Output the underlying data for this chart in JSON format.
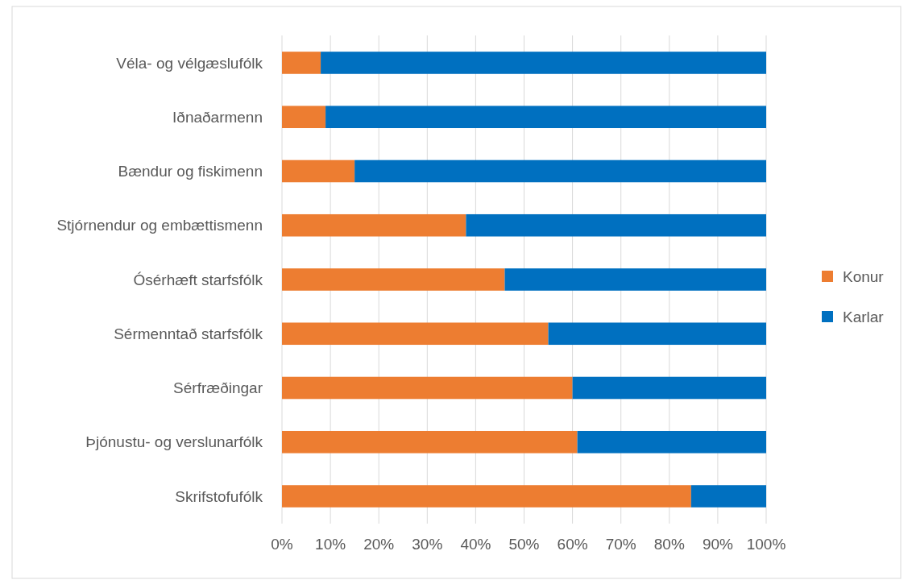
{
  "chart_data": {
    "type": "bar",
    "orientation": "horizontal",
    "stacked": true,
    "categories": [
      "Véla- og vélgæslufólk",
      "Iðnaðarmenn",
      "Bændur og fiskimenn",
      "Stjórnendur og embættismenn",
      "Ósérhæft starfsfólk",
      "Sérmenntað starfsfólk",
      "Sérfræðingar",
      "Þjónustu- og verslunarfólk",
      "Skrifstofufólk"
    ],
    "series": [
      {
        "name": "Konur",
        "color": "#ed7d31",
        "values": [
          8,
          9,
          15,
          38,
          46,
          55,
          60,
          61,
          84.5
        ]
      },
      {
        "name": "Karlar",
        "color": "#0070c0",
        "values": [
          92,
          91,
          85,
          62,
          54,
          45,
          40,
          39,
          15.5
        ]
      }
    ],
    "xlim": [
      0,
      100
    ],
    "xticks": [
      {
        "value": 0,
        "label": "0%"
      },
      {
        "value": 10,
        "label": "10%"
      },
      {
        "value": 20,
        "label": "20%"
      },
      {
        "value": 30,
        "label": "30%"
      },
      {
        "value": 40,
        "label": "40%"
      },
      {
        "value": 50,
        "label": "50%"
      },
      {
        "value": 60,
        "label": "60%"
      },
      {
        "value": 70,
        "label": "70%"
      },
      {
        "value": 80,
        "label": "80%"
      },
      {
        "value": 90,
        "label": "90%"
      },
      {
        "value": 100,
        "label": "100%"
      }
    ],
    "grid": "x",
    "legend": "right"
  }
}
